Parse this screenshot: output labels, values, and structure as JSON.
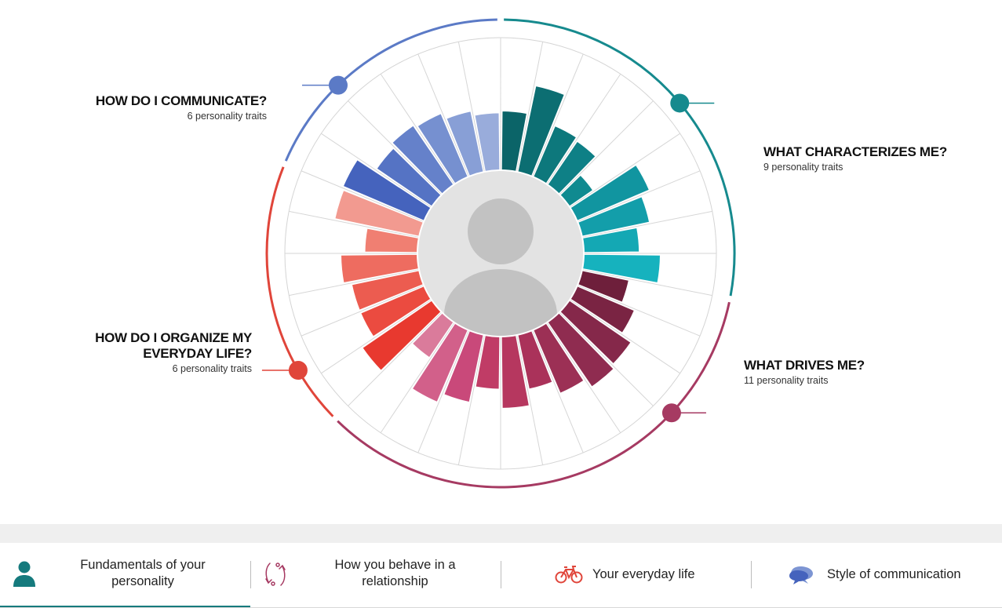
{
  "categories": {
    "communicate": {
      "title": "HOW DO I COMMUNICATE?",
      "subtitle": "6 personality traits",
      "color": "#5b7ac6"
    },
    "characterizes": {
      "title": "WHAT CHARACTERIZES ME?",
      "subtitle": "9 personality traits",
      "color": "#168a8e"
    },
    "drives": {
      "title": "WHAT DRIVES ME?",
      "subtitle": "11 personality traits",
      "color": "#a63a62"
    },
    "organize": {
      "title": "HOW DO I ORGANIZE MY EVERYDAY LIFE?",
      "subtitle": "6 personality traits",
      "color": "#e0453a"
    }
  },
  "wheel": {
    "avatar_icon": "user-avatar-icon",
    "segments": [
      {
        "group": "characterizes",
        "level": 0.62,
        "color": "#0b6468"
      },
      {
        "group": "characterizes",
        "level": 0.92,
        "color": "#0c6e72"
      },
      {
        "group": "characterizes",
        "level": 0.58,
        "color": "#0d787c"
      },
      {
        "group": "characterizes",
        "level": 0.55,
        "color": "#0e8086"
      },
      {
        "group": "characterizes",
        "level": 0.3,
        "color": "#108a90"
      },
      {
        "group": "characterizes",
        "level": 0.82,
        "color": "#1195a0"
      },
      {
        "group": "characterizes",
        "level": 0.72,
        "color": "#139eaa"
      },
      {
        "group": "characterizes",
        "level": 0.58,
        "color": "#14a8b4"
      },
      {
        "group": "characterizes",
        "level": 0.8,
        "color": "#16b2be"
      },
      {
        "group": "drives",
        "level": 0.5,
        "color": "#6e1f3b"
      },
      {
        "group": "drives",
        "level": 0.65,
        "color": "#7a2443"
      },
      {
        "group": "drives",
        "level": 0.78,
        "color": "#85284a"
      },
      {
        "group": "drives",
        "level": 0.82,
        "color": "#8f2c50"
      },
      {
        "group": "drives",
        "level": 0.72,
        "color": "#9c3055"
      },
      {
        "group": "drives",
        "level": 0.58,
        "color": "#aa325a"
      },
      {
        "group": "drives",
        "level": 0.75,
        "color": "#b6375f"
      },
      {
        "group": "drives",
        "level": 0.55,
        "color": "#c03c66"
      },
      {
        "group": "drives",
        "level": 0.72,
        "color": "#c9497a"
      },
      {
        "group": "drives",
        "level": 0.82,
        "color": "#d2608a"
      },
      {
        "group": "drives",
        "level": 0.45,
        "color": "#da7b9b"
      },
      {
        "group": "organize",
        "level": 0.88,
        "color": "#e8392f"
      },
      {
        "group": "organize",
        "level": 0.72,
        "color": "#eb4b40"
      },
      {
        "group": "organize",
        "level": 0.72,
        "color": "#ec5c50"
      },
      {
        "group": "organize",
        "level": 0.8,
        "color": "#ee6c60"
      },
      {
        "group": "organize",
        "level": 0.55,
        "color": "#f07f72"
      },
      {
        "group": "organize",
        "level": 0.9,
        "color": "#f29a90"
      },
      {
        "group": "communicate",
        "level": 0.92,
        "color": "#4563bd"
      },
      {
        "group": "communicate",
        "level": 0.7,
        "color": "#5573c4"
      },
      {
        "group": "communicate",
        "level": 0.75,
        "color": "#6581ca"
      },
      {
        "group": "communicate",
        "level": 0.72,
        "color": "#7690d0"
      },
      {
        "group": "communicate",
        "level": 0.65,
        "color": "#889fd6"
      },
      {
        "group": "communicate",
        "level": 0.6,
        "color": "#99acdb"
      }
    ]
  },
  "nav": {
    "tabs": [
      {
        "label": "Fundamentals of your personality",
        "icon": "person-icon",
        "active": true
      },
      {
        "label": "How you behave in a relationship",
        "icon": "relationship-arrows-icon",
        "active": false
      },
      {
        "label": "Your everyday life",
        "icon": "bicycle-icon",
        "active": false
      },
      {
        "label": "Style of communication",
        "icon": "speech-bubbles-icon",
        "active": false
      }
    ],
    "active_color": "#157a7d"
  }
}
